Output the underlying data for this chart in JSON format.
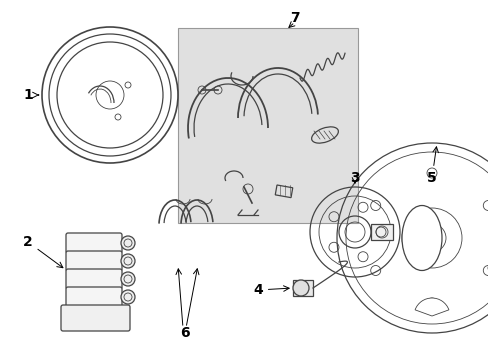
{
  "bg_color": "#ffffff",
  "lc": "#444444",
  "box_fill": "#e0e0e0",
  "box_edge": "#999999",
  "font_size": 10
}
